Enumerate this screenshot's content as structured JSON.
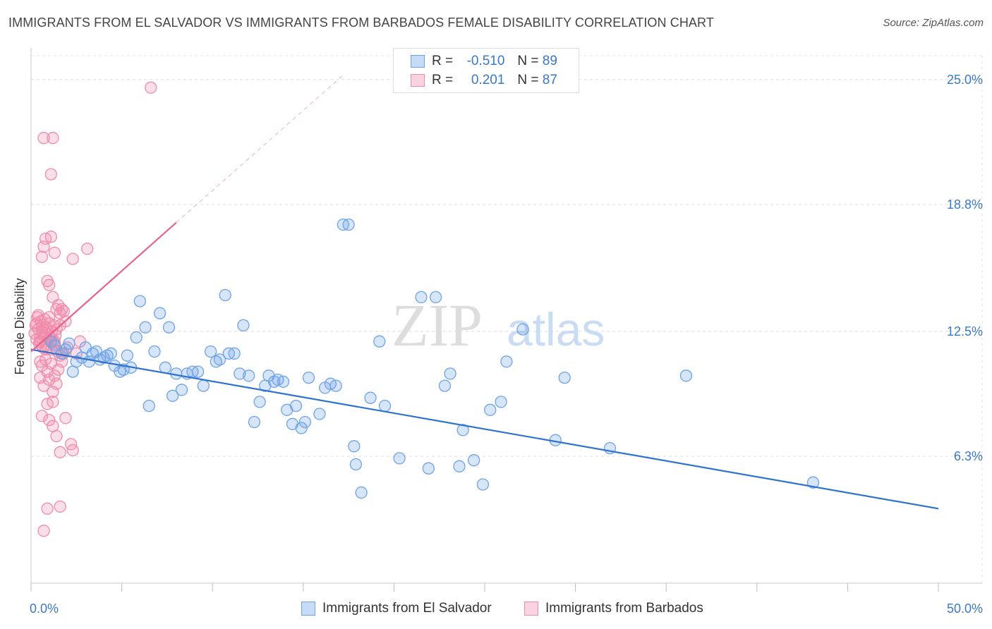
{
  "header": {
    "title": "IMMIGRANTS FROM EL SALVADOR VS IMMIGRANTS FROM BARBADOS FEMALE DISABILITY CORRELATION CHART",
    "source": "Source: ZipAtlas.com"
  },
  "watermark": {
    "zip": "ZIP",
    "atlas": "atlas"
  },
  "legend": {
    "rows": [
      {
        "r_label": "R =",
        "r_value": "-0.510",
        "n_label": "N =",
        "n_value": "89",
        "color": "#6ea3e6"
      },
      {
        "r_label": "R =",
        "r_value": "0.201",
        "n_label": "N =",
        "n_value": "87",
        "color": "#f08bab"
      }
    ]
  },
  "colors": {
    "blue": "#6ea3e6",
    "blue_line": "#2f72d0",
    "pink": "#f08bab",
    "pink_line": "#e8628e",
    "tick_text": "#3a78c9"
  },
  "chart_data": {
    "type": "scatter",
    "title": "IMMIGRANTS FROM EL SALVADOR VS IMMIGRANTS FROM BARBADOS FEMALE DISABILITY CORRELATION CHART",
    "xlabel": "",
    "ylabel": "Female Disability",
    "xlim": [
      0,
      50
    ],
    "ylim": [
      0,
      26.5
    ],
    "x_tick_labels": [
      "0.0%",
      "50.0%"
    ],
    "y_ticks": [
      6.3,
      12.5,
      18.8,
      25.0
    ],
    "y_tick_labels": [
      "6.3%",
      "12.5%",
      "18.8%",
      "25.0%"
    ],
    "grid": true,
    "legend_position": "top-center",
    "series": [
      {
        "name": "Immigrants from El Salvador",
        "color": "#6ea3e6",
        "points": [
          [
            1.1,
            12.0
          ],
          [
            1.3,
            11.8
          ],
          [
            1.7,
            11.4
          ],
          [
            1.9,
            11.6
          ],
          [
            2.1,
            11.9
          ],
          [
            2.3,
            10.5
          ],
          [
            2.5,
            11.0
          ],
          [
            2.8,
            11.2
          ],
          [
            3.0,
            11.7
          ],
          [
            3.2,
            11.0
          ],
          [
            3.4,
            11.4
          ],
          [
            3.6,
            11.5
          ],
          [
            3.8,
            11.1
          ],
          [
            4.0,
            11.2
          ],
          [
            4.2,
            11.3
          ],
          [
            4.4,
            11.4
          ],
          [
            4.6,
            10.8
          ],
          [
            4.9,
            10.5
          ],
          [
            5.1,
            10.6
          ],
          [
            5.3,
            11.3
          ],
          [
            5.5,
            10.7
          ],
          [
            5.8,
            12.2
          ],
          [
            6.0,
            14.0
          ],
          [
            6.3,
            12.7
          ],
          [
            6.5,
            8.8
          ],
          [
            6.8,
            11.5
          ],
          [
            7.1,
            13.4
          ],
          [
            7.4,
            10.7
          ],
          [
            7.6,
            12.7
          ],
          [
            7.8,
            9.3
          ],
          [
            8.0,
            10.4
          ],
          [
            8.3,
            9.6
          ],
          [
            8.6,
            10.4
          ],
          [
            8.9,
            10.5
          ],
          [
            9.2,
            10.5
          ],
          [
            9.5,
            9.8
          ],
          [
            9.9,
            11.5
          ],
          [
            10.2,
            11.0
          ],
          [
            10.4,
            11.1
          ],
          [
            10.7,
            14.3
          ],
          [
            10.9,
            11.4
          ],
          [
            11.2,
            11.4
          ],
          [
            11.5,
            10.4
          ],
          [
            11.7,
            12.8
          ],
          [
            12.0,
            10.3
          ],
          [
            12.3,
            8.0
          ],
          [
            12.6,
            9.0
          ],
          [
            12.9,
            9.8
          ],
          [
            13.1,
            10.3
          ],
          [
            13.4,
            10.0
          ],
          [
            13.6,
            10.1
          ],
          [
            13.9,
            10.0
          ],
          [
            14.1,
            8.6
          ],
          [
            14.4,
            7.9
          ],
          [
            14.6,
            8.8
          ],
          [
            14.9,
            7.7
          ],
          [
            15.1,
            8.0
          ],
          [
            15.3,
            10.2
          ],
          [
            15.9,
            8.4
          ],
          [
            16.2,
            9.7
          ],
          [
            16.5,
            9.9
          ],
          [
            16.8,
            9.8
          ],
          [
            17.2,
            17.8
          ],
          [
            17.5,
            17.8
          ],
          [
            17.8,
            6.8
          ],
          [
            17.9,
            5.9
          ],
          [
            18.2,
            4.5
          ],
          [
            18.7,
            9.2
          ],
          [
            19.2,
            12.0
          ],
          [
            19.5,
            8.8
          ],
          [
            20.3,
            6.2
          ],
          [
            21.5,
            14.2
          ],
          [
            21.9,
            5.7
          ],
          [
            22.3,
            14.2
          ],
          [
            22.8,
            9.8
          ],
          [
            23.1,
            10.4
          ],
          [
            23.6,
            5.8
          ],
          [
            23.8,
            7.6
          ],
          [
            24.4,
            6.1
          ],
          [
            24.9,
            4.9
          ],
          [
            25.3,
            8.6
          ],
          [
            25.9,
            9.0
          ],
          [
            26.2,
            11.0
          ],
          [
            27.1,
            12.6
          ],
          [
            28.9,
            7.1
          ],
          [
            29.4,
            10.2
          ],
          [
            31.9,
            6.7
          ],
          [
            36.1,
            10.3
          ],
          [
            43.1,
            5.0
          ]
        ]
      },
      {
        "name": "Immigrants from Barbados",
        "color": "#f08bab",
        "points": [
          [
            0.2,
            12.4
          ],
          [
            0.25,
            12.8
          ],
          [
            0.3,
            12.1
          ],
          [
            0.35,
            13.2
          ],
          [
            0.4,
            12.6
          ],
          [
            0.45,
            11.9
          ],
          [
            0.5,
            12.2
          ],
          [
            0.55,
            13.0
          ],
          [
            0.6,
            12.5
          ],
          [
            0.65,
            11.7
          ],
          [
            0.3,
            12.9
          ],
          [
            0.4,
            13.3
          ],
          [
            0.5,
            12.0
          ],
          [
            0.6,
            12.7
          ],
          [
            0.7,
            12.3
          ],
          [
            0.75,
            13.1
          ],
          [
            0.8,
            12.4
          ],
          [
            0.85,
            11.8
          ],
          [
            0.9,
            12.6
          ],
          [
            0.95,
            12.1
          ],
          [
            1.0,
            12.9
          ],
          [
            1.05,
            12.2
          ],
          [
            1.1,
            11.6
          ],
          [
            1.15,
            12.5
          ],
          [
            1.2,
            12.0
          ],
          [
            1.25,
            12.8
          ],
          [
            1.3,
            11.9
          ],
          [
            1.35,
            12.3
          ],
          [
            1.4,
            12.6
          ],
          [
            1.45,
            11.5
          ],
          [
            0.5,
            10.2
          ],
          [
            0.6,
            10.8
          ],
          [
            0.7,
            9.8
          ],
          [
            0.8,
            11.1
          ],
          [
            0.9,
            10.5
          ],
          [
            1.0,
            10.1
          ],
          [
            1.1,
            10.9
          ],
          [
            1.2,
            9.5
          ],
          [
            1.3,
            10.3
          ],
          [
            1.4,
            9.9
          ],
          [
            1.5,
            10.6
          ],
          [
            1.6,
            11.3
          ],
          [
            1.7,
            11.0
          ],
          [
            1.8,
            11.4
          ],
          [
            0.6,
            16.2
          ],
          [
            0.7,
            16.7
          ],
          [
            0.8,
            17.1
          ],
          [
            0.9,
            15.0
          ],
          [
            1.0,
            14.8
          ],
          [
            1.1,
            17.2
          ],
          [
            1.2,
            14.2
          ],
          [
            1.3,
            16.4
          ],
          [
            1.4,
            13.6
          ],
          [
            1.5,
            13.8
          ],
          [
            1.6,
            13.4
          ],
          [
            1.7,
            13.6
          ],
          [
            1.8,
            13.5
          ],
          [
            0.7,
            22.1
          ],
          [
            1.2,
            22.1
          ],
          [
            1.1,
            20.3
          ],
          [
            2.3,
            16.1
          ],
          [
            3.1,
            16.6
          ],
          [
            6.6,
            24.6
          ],
          [
            0.6,
            8.3
          ],
          [
            1.0,
            8.1
          ],
          [
            1.2,
            7.8
          ],
          [
            1.4,
            7.3
          ],
          [
            1.6,
            6.5
          ],
          [
            2.3,
            6.6
          ],
          [
            1.9,
            8.2
          ],
          [
            2.2,
            6.9
          ],
          [
            0.9,
            3.7
          ],
          [
            1.6,
            3.8
          ],
          [
            0.7,
            2.6
          ],
          [
            0.5,
            12.0
          ],
          [
            0.8,
            12.7
          ],
          [
            1.0,
            13.2
          ],
          [
            1.3,
            12.0
          ],
          [
            1.6,
            12.8
          ],
          [
            2.0,
            11.7
          ],
          [
            2.5,
            11.4
          ],
          [
            2.7,
            12.0
          ],
          [
            0.9,
            8.9
          ],
          [
            1.2,
            9.0
          ],
          [
            0.5,
            11.0
          ],
          [
            0.8,
            11.6
          ],
          [
            1.9,
            13.0
          ]
        ]
      }
    ],
    "trend_lines": [
      {
        "series": "Immigrants from El Salvador",
        "x": [
          0,
          50
        ],
        "y": [
          11.6,
          3.7
        ],
        "style": "solid"
      },
      {
        "series": "Immigrants from Barbados",
        "x": [
          0,
          8
        ],
        "y": [
          11.5,
          17.9
        ],
        "style": "solid"
      },
      {
        "series": "Immigrants from Barbados",
        "x": [
          8,
          17.3
        ],
        "y": [
          17.9,
          25.3
        ],
        "style": "dashed"
      }
    ]
  },
  "bottom_legend": {
    "items": [
      {
        "label": "Immigrants from El Salvador",
        "color": "#6ea3e6"
      },
      {
        "label": "Immigrants from Barbados",
        "color": "#f08bab"
      }
    ]
  }
}
